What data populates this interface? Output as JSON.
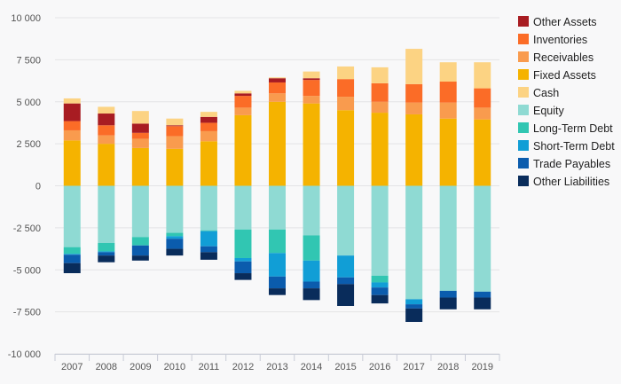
{
  "chart_data": {
    "type": "bar",
    "stacked": true,
    "categories": [
      "2007",
      "2008",
      "2009",
      "2010",
      "2011",
      "2012",
      "2013",
      "2014",
      "2015",
      "2016",
      "2017",
      "2018",
      "2019"
    ],
    "ylim": [
      -10000,
      10000
    ],
    "yticks": [
      10000,
      7500,
      5000,
      2500,
      0,
      -2500,
      -5000,
      -7500,
      -10000
    ],
    "ytick_labels": [
      "10 000",
      "7 500",
      "5 000",
      "2 500",
      "0",
      "-2 500",
      "-5 000",
      "-7 500",
      "-10 000"
    ],
    "grid": true,
    "legend_position": "right",
    "positive_series": [
      {
        "name": "Fixed Assets",
        "color": "#f5b300",
        "values": [
          2700,
          2500,
          2250,
          2200,
          2650,
          4200,
          5000,
          4900,
          4500,
          4350,
          4250,
          4000,
          3950
        ]
      },
      {
        "name": "Receivables",
        "color": "#f99b4e",
        "values": [
          600,
          500,
          550,
          750,
          600,
          450,
          500,
          450,
          800,
          650,
          700,
          950,
          700
        ]
      },
      {
        "name": "Inventories",
        "color": "#fb6c27",
        "values": [
          550,
          600,
          350,
          600,
          500,
          700,
          650,
          950,
          1050,
          1100,
          1100,
          1250,
          1150
        ]
      },
      {
        "name": "Other Assets",
        "color": "#a81c22",
        "values": [
          1050,
          700,
          550,
          50,
          350,
          150,
          250,
          100,
          0,
          0,
          0,
          0,
          0
        ]
      },
      {
        "name": "Cash",
        "color": "#fcd383",
        "values": [
          300,
          400,
          750,
          400,
          300,
          150,
          50,
          400,
          750,
          950,
          2100,
          1150,
          1550
        ]
      }
    ],
    "negative_series": [
      {
        "name": "Equity",
        "color": "#8fdad3",
        "values": [
          -3650,
          -3400,
          -3050,
          -2800,
          -2650,
          -2600,
          -2600,
          -2950,
          -4150,
          -5350,
          -6750,
          -6250,
          -6300
        ]
      },
      {
        "name": "Long-Term Debt",
        "color": "#31c6b2",
        "values": [
          -400,
          -500,
          -500,
          -200,
          -50,
          -1700,
          -1400,
          -1500,
          0,
          -400,
          0,
          0,
          0
        ]
      },
      {
        "name": "Short-Term Debt",
        "color": "#119ed6",
        "values": [
          -50,
          -50,
          0,
          -150,
          -900,
          -200,
          -1400,
          -1250,
          -1300,
          -300,
          -300,
          0,
          0
        ]
      },
      {
        "name": "Trade Payables",
        "color": "#0b5cad",
        "values": [
          -500,
          -200,
          -600,
          -600,
          -350,
          -700,
          -700,
          -400,
          -400,
          -450,
          -250,
          -400,
          -350
        ]
      },
      {
        "name": "Other Liabilities",
        "color": "#092c5b",
        "values": [
          -600,
          -400,
          -300,
          -400,
          -450,
          -400,
          -400,
          -700,
          -1300,
          -500,
          -800,
          -700,
          -700
        ]
      }
    ],
    "legend": [
      "Other Assets",
      "Inventories",
      "Receivables",
      "Fixed Assets",
      "Cash",
      "Equity",
      "Long-Term Debt",
      "Short-Term Debt",
      "Trade Payables",
      "Other Liabilities"
    ]
  }
}
